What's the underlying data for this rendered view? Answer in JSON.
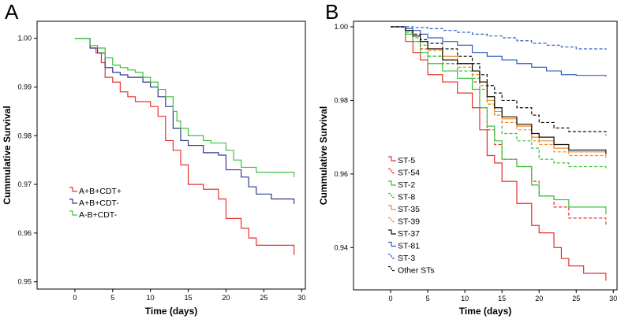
{
  "chart_data": [
    {
      "panel": "A",
      "type": "line",
      "step": true,
      "xlabel": "Time (days)",
      "ylabel": "Cummulative Survival",
      "xlim": [
        -5,
        30.5
      ],
      "ylim": [
        0.9485,
        1.0035
      ],
      "xticks": [
        "0",
        "5",
        "10",
        "15",
        "20",
        "25",
        "30"
      ],
      "yticks": [
        "0.95",
        "0.96",
        "0.97",
        "0.98",
        "0.99",
        "1.00"
      ],
      "legend_position": "lower-left",
      "series": [
        {
          "name": "A+B+CDT+",
          "color": "#e8312b",
          "dash": false,
          "x": [
            0,
            2,
            2.8,
            3.5,
            4,
            5,
            6,
            7,
            8,
            10,
            11,
            12,
            13,
            14,
            15,
            17,
            19,
            20,
            22,
            23,
            24,
            29,
            29
          ],
          "y": [
            1.0,
            0.998,
            0.997,
            0.995,
            0.992,
            0.991,
            0.989,
            0.988,
            0.987,
            0.986,
            0.984,
            0.979,
            0.977,
            0.974,
            0.97,
            0.969,
            0.967,
            0.963,
            0.961,
            0.959,
            0.9575,
            0.957,
            0.9555
          ]
        },
        {
          "name": "A+B+CDT-",
          "color": "#2e3a8c",
          "dash": false,
          "x": [
            0,
            2,
            3,
            4,
            5,
            6,
            7,
            9,
            10,
            11,
            12,
            13,
            14,
            15,
            17,
            19,
            20,
            22,
            23,
            24,
            26,
            29,
            29
          ],
          "y": [
            1.0,
            0.998,
            0.997,
            0.994,
            0.993,
            0.9925,
            0.992,
            0.991,
            0.99,
            0.988,
            0.986,
            0.9815,
            0.979,
            0.978,
            0.9765,
            0.976,
            0.973,
            0.9715,
            0.9695,
            0.968,
            0.967,
            0.967,
            0.966
          ]
        },
        {
          "name": "A-B+CDT-",
          "color": "#3cc23c",
          "dash": false,
          "x": [
            0,
            2,
            3,
            4,
            5,
            6,
            7,
            8,
            9,
            10,
            11,
            12,
            13,
            13.5,
            14,
            15,
            17,
            18,
            20,
            21,
            22,
            24,
            29,
            29
          ],
          "y": [
            1.0,
            0.9985,
            0.998,
            0.996,
            0.9945,
            0.994,
            0.9935,
            0.993,
            0.992,
            0.991,
            0.9895,
            0.988,
            0.985,
            0.983,
            0.9815,
            0.98,
            0.979,
            0.9785,
            0.977,
            0.975,
            0.9735,
            0.9725,
            0.9723,
            0.9715
          ]
        }
      ]
    },
    {
      "panel": "B",
      "type": "line",
      "step": true,
      "xlabel": "Time (days)",
      "ylabel": "Cummulative Survival",
      "xlim": [
        -5,
        30.5
      ],
      "ylim": [
        0.9285,
        1.0015
      ],
      "xticks": [
        "0",
        "5",
        "10",
        "15",
        "20",
        "25",
        "30"
      ],
      "yticks": [
        "0.94",
        "0.96",
        "0.98",
        "1.00"
      ],
      "legend_position": "lower-left",
      "series": [
        {
          "name": "ST-5",
          "color": "#e8312b",
          "dash": false,
          "x": [
            0,
            2,
            3,
            4,
            5,
            7,
            9,
            11,
            12,
            13,
            14,
            15,
            17,
            19,
            20,
            22,
            23,
            24,
            26,
            29,
            29
          ],
          "y": [
            1.0,
            0.996,
            0.993,
            0.991,
            0.987,
            0.985,
            0.982,
            0.978,
            0.972,
            0.965,
            0.963,
            0.958,
            0.952,
            0.946,
            0.944,
            0.94,
            0.937,
            0.935,
            0.933,
            0.932,
            0.931
          ]
        },
        {
          "name": "ST-54",
          "color": "#e8312b",
          "dash": true,
          "x": [
            0,
            2,
            3,
            4,
            5,
            7,
            9,
            11,
            12,
            13,
            14,
            15,
            17,
            19,
            20,
            22,
            24,
            29,
            29
          ],
          "y": [
            1.0,
            0.998,
            0.996,
            0.994,
            0.992,
            0.99,
            0.988,
            0.985,
            0.978,
            0.972,
            0.968,
            0.964,
            0.962,
            0.958,
            0.954,
            0.951,
            0.948,
            0.948,
            0.946
          ]
        },
        {
          "name": "ST-2",
          "color": "#3cc23c",
          "dash": false,
          "x": [
            0,
            2,
            3,
            4,
            5,
            7,
            9,
            11,
            12,
            13,
            14,
            15,
            17,
            19,
            20,
            22,
            24,
            29,
            29
          ],
          "y": [
            1.0,
            0.998,
            0.996,
            0.993,
            0.99,
            0.988,
            0.986,
            0.983,
            0.978,
            0.973,
            0.969,
            0.964,
            0.962,
            0.957,
            0.954,
            0.953,
            0.951,
            0.951,
            0.949
          ]
        },
        {
          "name": "ST-8",
          "color": "#3cc23c",
          "dash": true,
          "x": [
            0,
            2,
            3,
            4,
            5,
            7,
            9,
            11,
            12,
            13,
            14,
            15,
            17,
            19,
            20,
            22,
            24,
            29,
            29
          ],
          "y": [
            1.0,
            0.9985,
            0.997,
            0.995,
            0.992,
            0.99,
            0.988,
            0.986,
            0.983,
            0.979,
            0.976,
            0.971,
            0.969,
            0.967,
            0.964,
            0.963,
            0.962,
            0.962,
            0.961
          ]
        },
        {
          "name": "ST-35",
          "color": "#f58a1f",
          "dash": false,
          "x": [
            0,
            2,
            3,
            4,
            5,
            7,
            9,
            11,
            12,
            13,
            14,
            15,
            17,
            19,
            20,
            22,
            24,
            29,
            29
          ],
          "y": [
            1.0,
            0.999,
            0.9975,
            0.996,
            0.994,
            0.992,
            0.99,
            0.988,
            0.985,
            0.98,
            0.977,
            0.975,
            0.973,
            0.97,
            0.969,
            0.967,
            0.966,
            0.966,
            0.965
          ]
        },
        {
          "name": "ST-39",
          "color": "#f58a1f",
          "dash": true,
          "x": [
            0,
            2,
            3,
            4,
            5,
            7,
            9,
            11,
            12,
            13,
            14,
            15,
            17,
            19,
            20,
            22,
            24,
            29,
            29
          ],
          "y": [
            1.0,
            0.999,
            0.9975,
            0.996,
            0.9935,
            0.991,
            0.989,
            0.987,
            0.984,
            0.979,
            0.976,
            0.974,
            0.972,
            0.969,
            0.968,
            0.966,
            0.965,
            0.965,
            0.964
          ]
        },
        {
          "name": "ST-37",
          "color": "#111111",
          "dash": false,
          "x": [
            0,
            2,
            3,
            4,
            5,
            7,
            9,
            11,
            12,
            13,
            14,
            15,
            17,
            19,
            20,
            22,
            24,
            29,
            29
          ],
          "y": [
            1.0,
            0.999,
            0.9975,
            0.996,
            0.994,
            0.991,
            0.99,
            0.988,
            0.985,
            0.981,
            0.978,
            0.9755,
            0.9735,
            0.971,
            0.97,
            0.968,
            0.9665,
            0.9665,
            0.9655
          ]
        },
        {
          "name": "ST-81",
          "color": "#2f5fbf",
          "dash": false,
          "x": [
            0,
            2,
            3,
            4,
            5,
            7,
            9,
            11,
            13,
            15,
            17,
            19,
            21,
            23,
            25,
            29,
            29
          ],
          "y": [
            1.0,
            0.9995,
            0.999,
            0.998,
            0.997,
            0.996,
            0.995,
            0.993,
            0.992,
            0.991,
            0.99,
            0.989,
            0.988,
            0.987,
            0.9868,
            0.9868,
            0.9865
          ]
        },
        {
          "name": "ST-3",
          "color": "#2f5fbf",
          "dash": true,
          "x": [
            0,
            3,
            5,
            7,
            9,
            11,
            13,
            15,
            17,
            19,
            21,
            23,
            25,
            29
          ],
          "y": [
            1.0,
            0.9998,
            0.9995,
            0.999,
            0.9985,
            0.998,
            0.9975,
            0.997,
            0.9962,
            0.9955,
            0.995,
            0.9945,
            0.994,
            0.9938
          ]
        },
        {
          "name": "Other STs",
          "color": "#111111",
          "dash": true,
          "x": [
            0,
            2,
            3,
            4,
            5,
            7,
            9,
            11,
            12,
            13,
            14,
            15,
            17,
            19,
            20,
            22,
            24,
            29,
            29
          ],
          "y": [
            1.0,
            0.999,
            0.998,
            0.9965,
            0.9955,
            0.994,
            0.992,
            0.99,
            0.987,
            0.984,
            0.982,
            0.98,
            0.978,
            0.976,
            0.974,
            0.9725,
            0.9715,
            0.9715,
            0.9705
          ]
        }
      ]
    }
  ],
  "panels": {
    "A": {
      "letter": "A"
    },
    "B": {
      "letter": "B"
    }
  }
}
